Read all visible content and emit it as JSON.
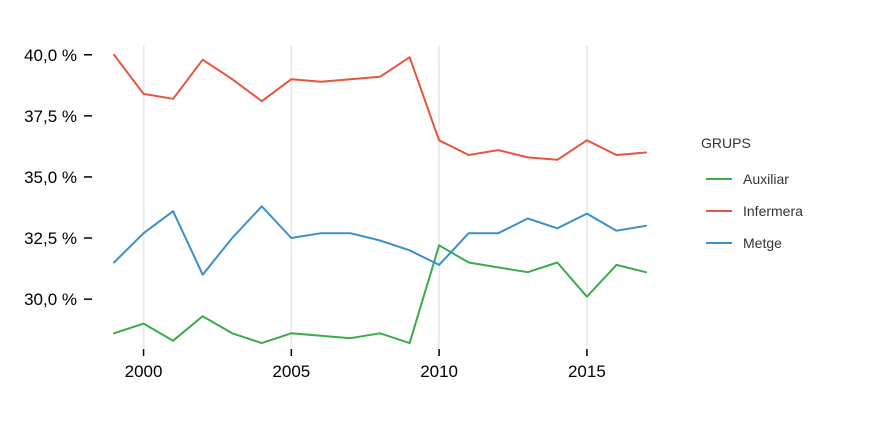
{
  "chart_data": {
    "type": "line",
    "title": "",
    "xlabel": "",
    "ylabel": "",
    "x": [
      1999,
      2000,
      2001,
      2002,
      2003,
      2004,
      2005,
      2006,
      2007,
      2008,
      2009,
      2010,
      2011,
      2012,
      2013,
      2014,
      2015,
      2016,
      2017
    ],
    "xlim": [
      1999,
      2017
    ],
    "ylim": [
      28.0,
      40.4
    ],
    "x_ticks": [
      2000,
      2005,
      2010,
      2015
    ],
    "x_tick_labels": [
      "2000",
      "2005",
      "2010",
      "2015"
    ],
    "y_ticks": [
      30.0,
      32.5,
      35.0,
      37.5,
      40.0
    ],
    "y_tick_labels": [
      "30,0 %",
      "32,5 %",
      "35,0 %",
      "37,5 %",
      "40,0 %"
    ],
    "grid": "vertical",
    "legend": {
      "title": "GRUPS",
      "position": "right"
    },
    "series": [
      {
        "name": "Auxiliar",
        "color": "#3cab4b",
        "values": [
          28.6,
          29.0,
          28.3,
          29.3,
          28.6,
          28.2,
          28.6,
          28.5,
          28.4,
          28.6,
          28.2,
          32.2,
          31.5,
          31.3,
          31.1,
          31.5,
          30.1,
          31.4,
          31.1
        ]
      },
      {
        "name": "Infermera",
        "color": "#e8553f",
        "values": [
          40.0,
          38.4,
          38.2,
          39.8,
          39.0,
          38.1,
          39.0,
          38.9,
          39.0,
          39.1,
          39.9,
          36.5,
          35.9,
          36.1,
          35.8,
          35.7,
          36.5,
          35.9,
          36.0
        ]
      },
      {
        "name": "Metge",
        "color": "#3a8fcc",
        "values": [
          31.5,
          32.7,
          33.6,
          31.0,
          32.5,
          33.8,
          32.5,
          32.7,
          32.7,
          32.4,
          32.0,
          31.4,
          32.7,
          32.7,
          33.3,
          32.9,
          33.5,
          32.8,
          33.0
        ]
      }
    ]
  }
}
